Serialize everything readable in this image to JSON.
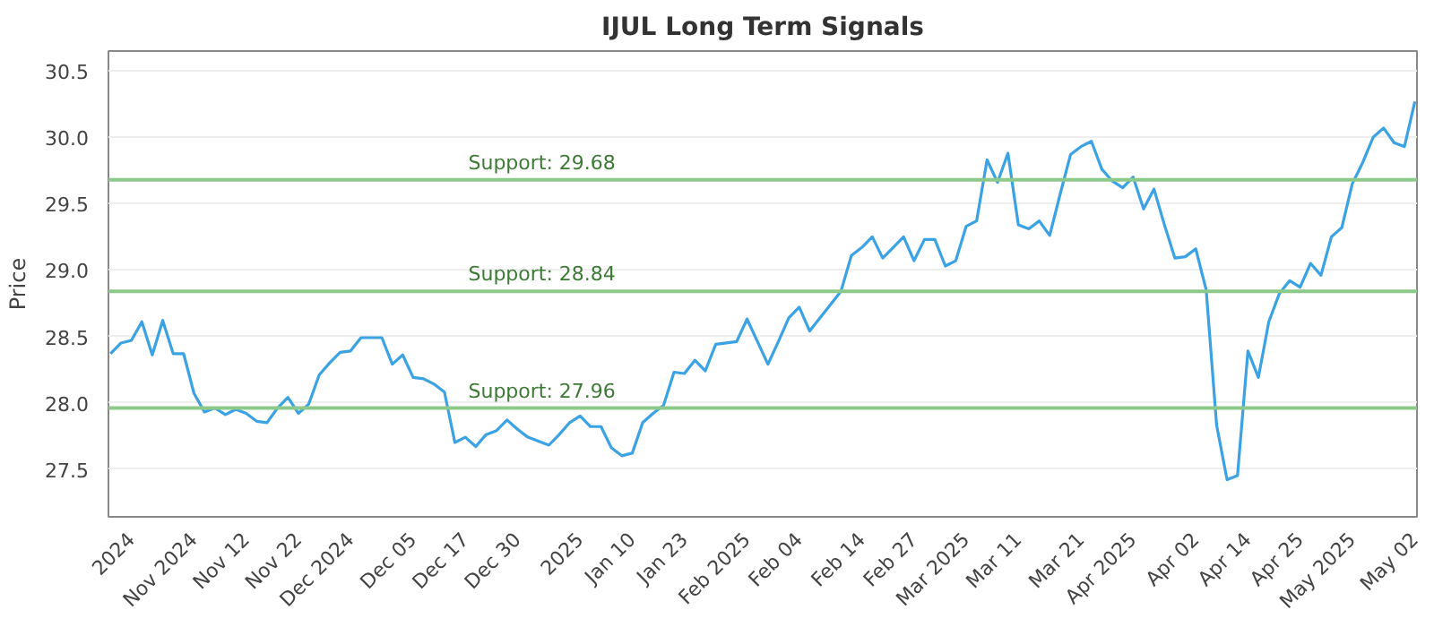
{
  "chart_data": {
    "type": "line",
    "title": "IJUL Long Term Signals",
    "ylabel": "Price",
    "categories": [
      null,
      null,
      "2024",
      null,
      null,
      null,
      null,
      null,
      "Nov 2024",
      null,
      null,
      null,
      null,
      "Nov 12",
      null,
      null,
      null,
      null,
      "Nov 22",
      null,
      null,
      null,
      null,
      "Dec 2024",
      null,
      null,
      null,
      null,
      null,
      "Dec 05",
      null,
      null,
      null,
      null,
      "Dec 17",
      null,
      null,
      null,
      null,
      "Dec 30",
      null,
      null,
      null,
      null,
      null,
      "2025",
      null,
      null,
      null,
      null,
      "Jan 10",
      null,
      null,
      null,
      null,
      "Jan 23",
      null,
      null,
      null,
      null,
      null,
      "Feb 2025",
      null,
      null,
      null,
      null,
      "Feb 04",
      null,
      null,
      null,
      null,
      null,
      "Feb 14",
      null,
      null,
      null,
      null,
      "Feb 27",
      null,
      null,
      null,
      null,
      "Mar 2025",
      null,
      null,
      null,
      null,
      "Mar 11",
      null,
      null,
      null,
      null,
      null,
      "Mar 21",
      null,
      null,
      null,
      null,
      "Apr 2025",
      null,
      null,
      null,
      null,
      null,
      "Apr 02",
      null,
      null,
      null,
      null,
      "Apr 14",
      null,
      null,
      null,
      null,
      "Apr 25",
      null,
      null,
      null,
      null,
      "May 2025",
      null,
      null,
      null,
      null,
      null,
      "May 02"
    ],
    "series": [
      {
        "color": "#3ba2e4",
        "values": [
          28.37,
          28.45,
          28.47,
          28.61,
          28.36,
          28.62,
          28.37,
          28.37,
          28.07,
          27.93,
          27.96,
          27.91,
          27.95,
          27.92,
          27.86,
          27.85,
          27.96,
          28.04,
          27.92,
          27.99,
          28.21,
          28.3,
          28.38,
          28.39,
          28.49,
          28.49,
          28.49,
          28.29,
          28.36,
          28.19,
          28.18,
          28.14,
          28.08,
          27.7,
          27.74,
          27.67,
          27.76,
          27.79,
          27.87,
          27.8,
          27.74,
          27.71,
          27.68,
          27.76,
          27.85,
          27.9,
          27.82,
          27.82,
          27.66,
          27.6,
          27.62,
          27.85,
          27.92,
          27.98,
          28.23,
          28.22,
          28.32,
          28.24,
          28.44,
          28.45,
          28.46,
          28.63,
          28.46,
          28.29,
          28.46,
          28.64,
          28.72,
          28.54,
          28.64,
          28.74,
          28.84,
          29.11,
          29.17,
          29.25,
          29.09,
          29.17,
          29.25,
          29.07,
          29.23,
          29.23,
          29.03,
          29.07,
          29.33,
          29.37,
          29.83,
          29.66,
          29.88,
          29.34,
          29.31,
          29.37,
          29.26,
          29.57,
          29.87,
          29.93,
          29.97,
          29.76,
          29.67,
          29.62,
          29.7,
          29.46,
          29.61,
          29.34,
          29.09,
          29.1,
          29.16,
          28.85,
          27.83,
          27.42,
          27.45,
          28.39,
          28.19,
          28.61,
          28.82,
          28.92,
          28.87,
          29.05,
          28.96,
          29.25,
          29.32,
          29.65,
          29.81,
          30.0,
          30.07,
          29.96,
          29.93,
          30.27
        ]
      }
    ],
    "ylim": [
      27.14,
      30.65
    ],
    "yticks": [
      {
        "value": 27.5,
        "label": "27.5"
      },
      {
        "value": 28.0,
        "label": "28.0"
      },
      {
        "value": 28.5,
        "label": "28.5"
      },
      {
        "value": 29.0,
        "label": "29.0"
      },
      {
        "value": 29.5,
        "label": "29.5"
      },
      {
        "value": 30.0,
        "label": "30.0"
      },
      {
        "value": 30.5,
        "label": "30.5"
      }
    ],
    "grid": "y",
    "marker": "none",
    "line_style": "solid",
    "ref_lines": [
      {
        "axis": "y",
        "value": 29.68,
        "label": "Support: 29.68",
        "color": "#8cc98a"
      },
      {
        "axis": "y",
        "value": 28.84,
        "label": "Support: 28.84",
        "color": "#8cc98a"
      },
      {
        "axis": "y",
        "value": 27.96,
        "label": "Support: 27.96",
        "color": "#8cc98a"
      }
    ]
  }
}
